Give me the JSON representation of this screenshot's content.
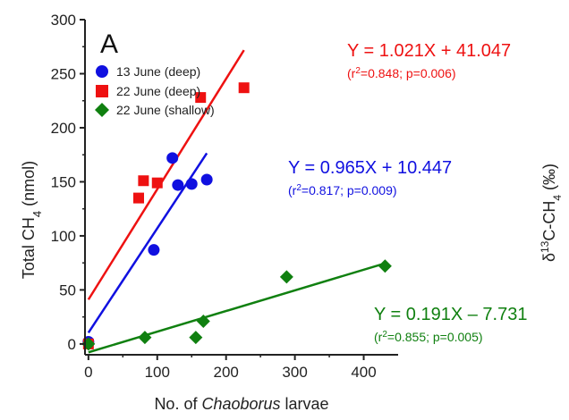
{
  "chart_data": {
    "type": "scatter",
    "panel_label": "A",
    "xlabel_prefix": "No. of ",
    "xlabel_italic": "Chaoborus",
    "xlabel_suffix": " larvae",
    "ylabel_main": "Total CH",
    "ylabel_sub": "4",
    "ylabel_unit": " (nmol)",
    "right_label": {
      "delta": "δ",
      "sup": "13",
      "main": "C-CH",
      "sub": "4",
      "unit": " (‰)"
    },
    "xlim": [
      -5,
      450
    ],
    "ylim": [
      -10,
      300
    ],
    "x_ticks": [
      0,
      100,
      200,
      300,
      400
    ],
    "y_ticks": [
      0,
      50,
      100,
      150,
      200,
      250,
      300
    ],
    "x_tick_labels": [
      "0",
      "100",
      "200",
      "300",
      "400"
    ],
    "y_tick_labels": [
      "0",
      "50",
      "100",
      "150",
      "200",
      "250",
      "300"
    ],
    "series": [
      {
        "name": "13 June (deep)",
        "color": "#1010e0",
        "marker": "circle",
        "points": [
          [
            0,
            2
          ],
          [
            95,
            87
          ],
          [
            122,
            172
          ],
          [
            130,
            147
          ],
          [
            150,
            148
          ],
          [
            172,
            152
          ]
        ],
        "fit": {
          "slope": 0.965,
          "intercept": 10.447,
          "x_range": [
            0,
            172
          ]
        },
        "equation": "Y = 0.965X + 10.447",
        "stats": {
          "r_sup": "2",
          "r_prefix": "(r",
          "r_value": "=0.817; p=0.009)"
        }
      },
      {
        "name": "22 June (deep)",
        "color": "#ee1111",
        "marker": "square",
        "points": [
          [
            0,
            0
          ],
          [
            73,
            135
          ],
          [
            80,
            151
          ],
          [
            100,
            149
          ],
          [
            163,
            228
          ],
          [
            226,
            237
          ]
        ],
        "fit": {
          "slope": 1.021,
          "intercept": 41.047,
          "x_range": [
            0,
            226
          ]
        },
        "equation": "Y = 1.021X + 41.047",
        "stats": {
          "r_sup": "2",
          "r_prefix": "(r",
          "r_value": "=0.848; p=0.006)"
        }
      },
      {
        "name": "22 June (shallow)",
        "color": "#108010",
        "marker": "diamond",
        "points": [
          [
            0,
            0
          ],
          [
            82,
            6
          ],
          [
            156,
            6
          ],
          [
            167,
            21
          ],
          [
            288,
            62
          ],
          [
            431,
            72
          ]
        ],
        "fit": {
          "slope": 0.191,
          "intercept": -7.731,
          "x_range": [
            0,
            431
          ]
        },
        "equation": "Y = 0.191X – 7.731",
        "stats": {
          "r_sup": "2",
          "r_prefix": "(r",
          "r_value": "=0.855; p=0.005)"
        }
      }
    ],
    "legend_position": "top-left"
  }
}
